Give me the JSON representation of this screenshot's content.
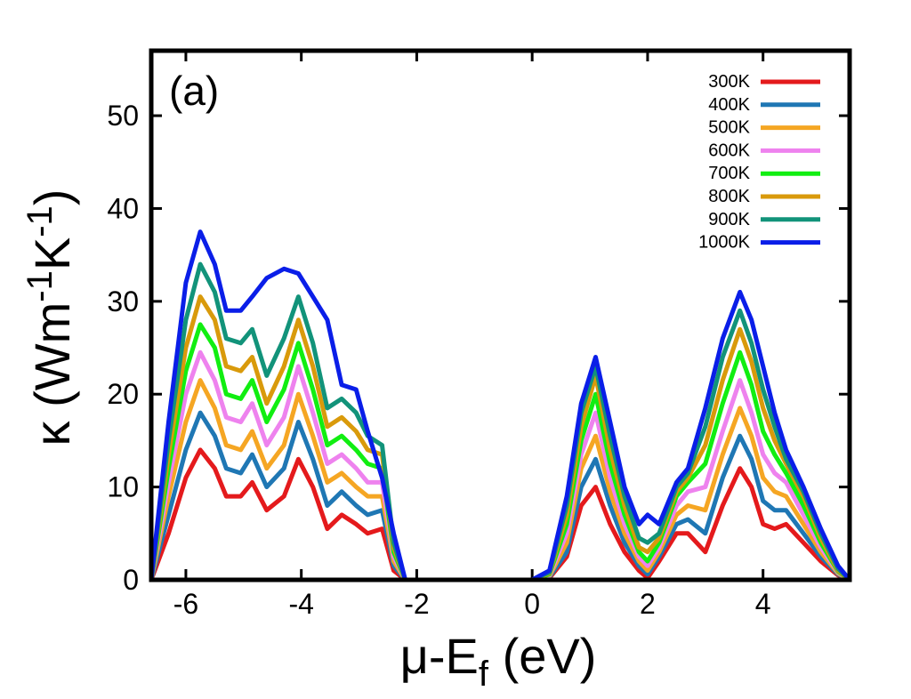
{
  "chart_data": {
    "type": "line",
    "panel_label": "(a)",
    "xlabel_main": "μ-E",
    "xlabel_sub": "f",
    "xlabel_tail": " (eV)",
    "ylabel_kappa": "κ (Wm",
    "ylabel_exp1": "-1",
    "ylabel_mid": "K",
    "ylabel_exp2": "-1",
    "ylabel_close": ")",
    "xlim": [
      -6.6,
      5.5
    ],
    "ylim": [
      0,
      57
    ],
    "x_ticks": [
      -6,
      -4,
      -2,
      0,
      2,
      4
    ],
    "x_tick_labels": [
      "-6",
      "-4",
      "-2",
      "0",
      "2",
      "4"
    ],
    "y_ticks": [
      0,
      10,
      20,
      30,
      40,
      50
    ],
    "y_tick_labels": [
      "0",
      "10",
      "20",
      "30",
      "40",
      "50"
    ],
    "legend_position": "top-right",
    "x": [
      -6.6,
      -6.3,
      -6.0,
      -5.75,
      -5.5,
      -5.3,
      -5.05,
      -4.85,
      -4.6,
      -4.3,
      -4.05,
      -3.8,
      -3.55,
      -3.3,
      -3.05,
      -2.85,
      -2.6,
      -2.4,
      -2.2,
      -2.0,
      -1.5,
      -1.0,
      -0.5,
      0.0,
      0.3,
      0.6,
      0.85,
      1.1,
      1.35,
      1.6,
      1.85,
      2.0,
      2.2,
      2.5,
      2.7,
      3.0,
      3.3,
      3.6,
      3.8,
      4.0,
      4.2,
      4.4,
      4.7,
      5.0,
      5.3,
      5.5
    ],
    "series": [
      {
        "name": "300K",
        "color": "#e41a1c",
        "values": [
          0,
          5,
          11,
          14,
          12,
          9,
          9,
          10.5,
          7.5,
          9,
          13,
          10,
          5.5,
          7,
          6,
          5,
          5.5,
          1,
          0,
          0,
          0,
          0,
          0,
          0,
          0.2,
          2.5,
          8,
          10,
          6,
          3,
          1,
          0.2,
          2,
          5,
          5,
          3,
          8,
          12,
          10,
          6,
          5.5,
          6,
          4,
          2,
          0.5,
          0
        ]
      },
      {
        "name": "400K",
        "color": "#1f77b4",
        "values": [
          0,
          7,
          14,
          18,
          15.5,
          12,
          11.5,
          13.5,
          10,
          12,
          17,
          13,
          8,
          9.5,
          8,
          7,
          7.5,
          1.5,
          0,
          0,
          0,
          0,
          0,
          0,
          0.3,
          3,
          10,
          13,
          8,
          4,
          1.5,
          0.6,
          2.5,
          6,
          6.5,
          5,
          11,
          15.5,
          13,
          8.5,
          7.5,
          7.5,
          5,
          2.5,
          0.6,
          0
        ]
      },
      {
        "name": "500K",
        "color": "#f5a623",
        "values": [
          0,
          9,
          17,
          21.5,
          18.5,
          14.5,
          14,
          16,
          12,
          14.5,
          20,
          15.5,
          10.5,
          11.5,
          10,
          9,
          9,
          2,
          0,
          0,
          0,
          0,
          0,
          0,
          0.4,
          4,
          12,
          15.5,
          9.5,
          5,
          2,
          1,
          3,
          7,
          8,
          7.5,
          13.5,
          18.5,
          15.5,
          11,
          9.5,
          9,
          6,
          3,
          0.7,
          0
        ]
      },
      {
        "name": "600K",
        "color": "#ee82ee",
        "values": [
          0,
          10.5,
          20,
          24.5,
          21.5,
          17.5,
          17,
          19,
          14.5,
          17.5,
          23,
          18,
          12.5,
          13.5,
          12,
          10.5,
          10.5,
          2.5,
          0,
          0,
          0,
          0,
          0,
          0,
          0.5,
          5,
          13.5,
          18,
          11,
          6,
          2.5,
          1.5,
          3.5,
          8,
          9.5,
          10,
          16,
          21.5,
          18,
          13.5,
          11.5,
          10.5,
          7,
          3.5,
          0.8,
          0
        ]
      },
      {
        "name": "700K",
        "color": "#11ee11",
        "values": [
          0,
          12,
          22.5,
          27.5,
          25,
          20,
          19.5,
          21.5,
          17,
          20.5,
          25.5,
          20.5,
          14.5,
          15.5,
          14,
          12.5,
          12,
          3,
          0,
          0,
          0,
          0,
          0,
          0,
          0.6,
          6,
          15,
          20,
          12.5,
          7,
          3,
          2,
          4,
          9,
          10.5,
          12.5,
          19,
          24.5,
          21,
          16,
          13.5,
          11.5,
          8,
          4,
          0.9,
          0
        ]
      },
      {
        "name": "800K",
        "color": "#d99a0b",
        "values": [
          0,
          13.5,
          25,
          30.5,
          28,
          23,
          22.5,
          24,
          19,
          23,
          28,
          23,
          16.5,
          17.5,
          16,
          14,
          13.5,
          3.5,
          0,
          0,
          0,
          0,
          0,
          0,
          0.7,
          7,
          16.5,
          22,
          14,
          8,
          3.5,
          3,
          4.5,
          9.5,
          11,
          14.5,
          21.5,
          27,
          23.5,
          18.5,
          15,
          12.5,
          9,
          4.5,
          1,
          0
        ]
      },
      {
        "name": "900K",
        "color": "#12937a",
        "values": [
          0,
          15,
          28,
          34,
          31,
          26,
          25.5,
          27,
          22,
          26,
          30.5,
          25.5,
          18.5,
          19.5,
          18,
          15.5,
          14.5,
          4,
          0,
          0,
          0,
          0,
          0,
          0,
          0.8,
          8,
          18,
          23,
          15.5,
          9,
          4.5,
          4,
          5,
          10,
          11.5,
          16.5,
          24,
          29,
          25.5,
          20.5,
          16.5,
          13,
          9.5,
          5,
          1.2,
          0
        ]
      },
      {
        "name": "1000K",
        "color": "#0a1ee8",
        "values": [
          0,
          17,
          32,
          37.5,
          34,
          29,
          29,
          30.5,
          32.5,
          33.5,
          33,
          30.5,
          28,
          21,
          20.5,
          16,
          11,
          5,
          0,
          0,
          0,
          0,
          0,
          0,
          1,
          9,
          19,
          24,
          17,
          10,
          6,
          7,
          6,
          10.5,
          12,
          18.5,
          26,
          31,
          28,
          23,
          18,
          14,
          10,
          5.5,
          1.5,
          0
        ]
      }
    ]
  }
}
